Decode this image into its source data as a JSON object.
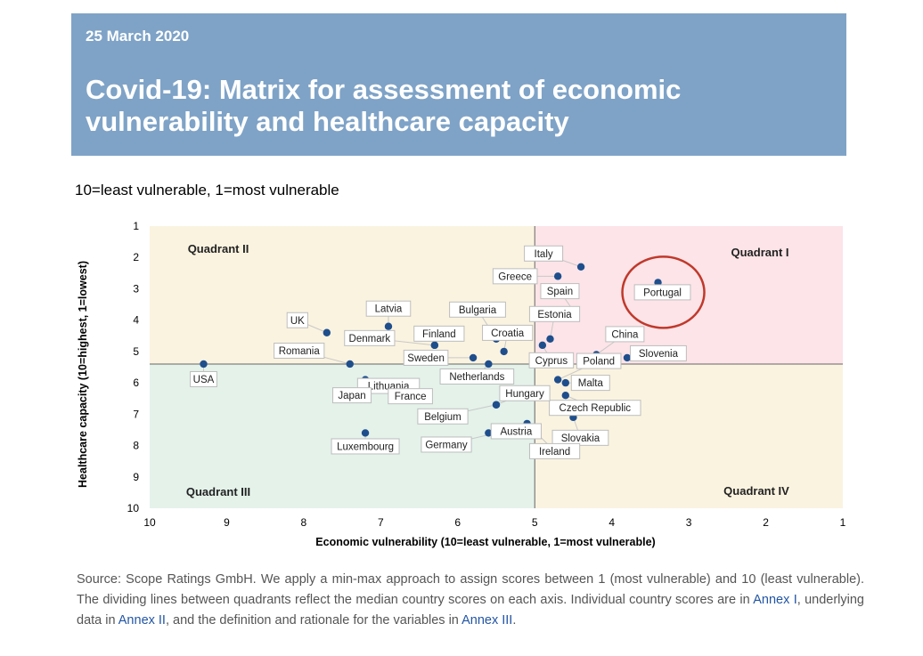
{
  "header": {
    "date": "25 March 2020",
    "title": "Covid-19: Matrix for assessment of economic vulnerability and healthcare capacity"
  },
  "subtitle": "10=least vulnerable, 1=most vulnerable",
  "chart_data": {
    "type": "scatter",
    "xlabel": "Economic vulnerability (10=least vulnerable, 1=most vulnerable)",
    "ylabel": "Healthcare capacity (10=highest, 1=lowest)",
    "xlim": [
      10,
      1
    ],
    "ylim": [
      1,
      10
    ],
    "x_ticks": [
      10,
      9,
      8,
      7,
      6,
      5,
      4,
      3,
      2,
      1
    ],
    "y_ticks": [
      1,
      2,
      3,
      4,
      5,
      6,
      7,
      8,
      9,
      10
    ],
    "median_x": 5.0,
    "median_y": 5.4,
    "quadrants": [
      {
        "name": "Quadrant I",
        "color": "#fce4e8"
      },
      {
        "name": "Quadrant II",
        "color": "#faf3e0"
      },
      {
        "name": "Quadrant III",
        "color": "#e4f2ea"
      },
      {
        "name": "Quadrant IV",
        "color": "#faf3e0"
      }
    ],
    "marker_color": "#1f4e8c",
    "highlight": {
      "country": "Portugal",
      "color": "#c0392b"
    },
    "points": [
      {
        "name": "Italy",
        "x": 4.4,
        "y": 2.3
      },
      {
        "name": "Greece",
        "x": 4.7,
        "y": 2.6
      },
      {
        "name": "Spain",
        "x": 4.5,
        "y": 3.7
      },
      {
        "name": "Portugal",
        "x": 3.4,
        "y": 2.8
      },
      {
        "name": "Estonia",
        "x": 4.8,
        "y": 4.6
      },
      {
        "name": "Cyprus",
        "x": 4.9,
        "y": 4.8
      },
      {
        "name": "China",
        "x": 4.2,
        "y": 5.1
      },
      {
        "name": "Slovenia",
        "x": 3.8,
        "y": 5.2
      },
      {
        "name": "Poland",
        "x": 4.7,
        "y": 5.9
      },
      {
        "name": "Malta",
        "x": 4.6,
        "y": 6.0
      },
      {
        "name": "Czech Republic",
        "x": 4.6,
        "y": 6.4
      },
      {
        "name": "Slovakia",
        "x": 4.5,
        "y": 7.1
      },
      {
        "name": "Ireland",
        "x": 5.1,
        "y": 7.3
      },
      {
        "name": "Hungary",
        "x": 5.5,
        "y": 6.7
      },
      {
        "name": "Austria",
        "x": 5.6,
        "y": 7.6
      },
      {
        "name": "Bulgaria",
        "x": 5.5,
        "y": 4.6
      },
      {
        "name": "Croatia",
        "x": 5.4,
        "y": 5.0
      },
      {
        "name": "Finland",
        "x": 6.3,
        "y": 4.8
      },
      {
        "name": "Sweden",
        "x": 5.8,
        "y": 5.2
      },
      {
        "name": "Netherlands",
        "x": 5.6,
        "y": 5.4
      },
      {
        "name": "Belgium",
        "x": 5.5,
        "y": 6.7
      },
      {
        "name": "Germany",
        "x": 5.5,
        "y": 7.6
      },
      {
        "name": "Latvia",
        "x": 6.9,
        "y": 4.2
      },
      {
        "name": "Denmark",
        "x": 6.3,
        "y": 4.8
      },
      {
        "name": "UK",
        "x": 7.7,
        "y": 4.4
      },
      {
        "name": "Romania",
        "x": 7.4,
        "y": 5.4
      },
      {
        "name": "Lithuania",
        "x": 7.2,
        "y": 5.9
      },
      {
        "name": "France",
        "x": 6.8,
        "y": 6.2
      },
      {
        "name": "Japan",
        "x": 7.2,
        "y": 6.0
      },
      {
        "name": "USA",
        "x": 9.3,
        "y": 5.4
      },
      {
        "name": "Luxembourg",
        "x": 7.2,
        "y": 7.6
      }
    ]
  },
  "source": {
    "prefix": "Source: Scope Ratings GmbH. We apply a min-max approach to assign scores between 1 (most vulnerable) and 10 (least vulnerable). The dividing lines between quadrants reflect the median country scores on each axis. Individual country scores are in ",
    "link1": "Annex I",
    "mid1": ", underlying data in ",
    "link2": "Annex II",
    "mid2": ", and the definition and rationale for the variables in ",
    "link3": "Annex III",
    "suffix": "."
  }
}
